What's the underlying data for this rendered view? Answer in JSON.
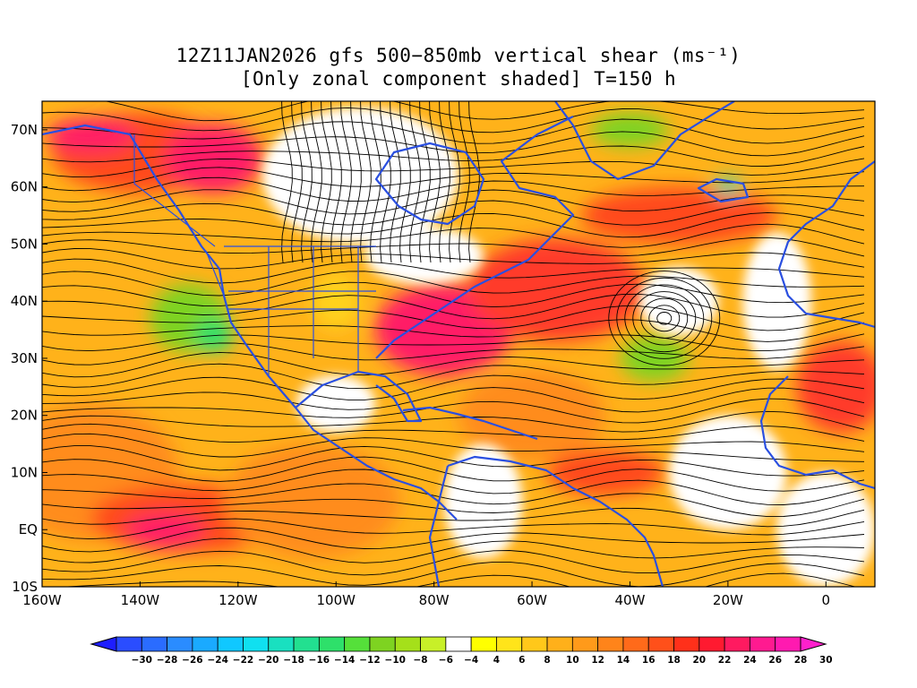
{
  "title": {
    "line1": "12Z11JAN2026 gfs 500−850mb vertical shear (ms⁻¹)",
    "line2": "[Only zonal component shaded] T=150 h"
  },
  "map": {
    "lon_range": [
      -160,
      10
    ],
    "lat_range": [
      -10,
      75
    ],
    "land_outline_color": "#2a4fe0",
    "streamline_color": "#000000",
    "lat_labels": [
      {
        "lat": 70,
        "text": "70N"
      },
      {
        "lat": 60,
        "text": "60N"
      },
      {
        "lat": 50,
        "text": "50N"
      },
      {
        "lat": 40,
        "text": "40N"
      },
      {
        "lat": 30,
        "text": "30N"
      },
      {
        "lat": 20,
        "text": "20N"
      },
      {
        "lat": 10,
        "text": "10N"
      },
      {
        "lat": 0,
        "text": "EQ"
      },
      {
        "lat": -10,
        "text": "10S"
      }
    ],
    "lon_labels": [
      {
        "lon": -160,
        "text": "160W"
      },
      {
        "lon": -140,
        "text": "140W"
      },
      {
        "lon": -120,
        "text": "120W"
      },
      {
        "lon": -100,
        "text": "100W"
      },
      {
        "lon": -80,
        "text": "80W"
      },
      {
        "lon": -60,
        "text": "60W"
      },
      {
        "lon": -40,
        "text": "40W"
      },
      {
        "lon": -20,
        "text": "20W"
      },
      {
        "lon": 0,
        "text": "0"
      }
    ],
    "shading_regions": [
      {
        "color": "#ff8c1a",
        "lon": -150,
        "lat": 10,
        "rx": 18,
        "ry": 12
      },
      {
        "color": "#ff4a1a",
        "lon": -130,
        "lat": 2,
        "rx": 20,
        "ry": 6
      },
      {
        "color": "#ff1a66",
        "lon": -135,
        "lat": 0,
        "rx": 8,
        "ry": 3
      },
      {
        "color": "#ff8c1a",
        "lon": -105,
        "lat": 5,
        "rx": 18,
        "ry": 10
      },
      {
        "color": "#ff4a1a",
        "lon": -140,
        "lat": 66,
        "rx": 18,
        "ry": 7
      },
      {
        "color": "#ff1a66",
        "lon": -125,
        "lat": 65,
        "rx": 10,
        "ry": 6
      },
      {
        "color": "#ff1a66",
        "lon": -150,
        "lat": 69,
        "rx": 9,
        "ry": 3
      },
      {
        "color": "#ff1a66",
        "lon": -78,
        "lat": 35,
        "rx": 14,
        "ry": 8
      },
      {
        "color": "#ff3a2a",
        "lon": -55,
        "lat": 42,
        "rx": 18,
        "ry": 9
      },
      {
        "color": "#ff4a1a",
        "lon": -30,
        "lat": 55,
        "rx": 20,
        "ry": 5
      },
      {
        "color": "#ff3a2a",
        "lon": 3,
        "lat": 25,
        "rx": 9,
        "ry": 8
      },
      {
        "color": "#ff4a1a",
        "lon": -45,
        "lat": 10,
        "rx": 12,
        "ry": 4
      },
      {
        "color": "#ff8c1a",
        "lon": -60,
        "lat": 20,
        "rx": 15,
        "ry": 8
      },
      {
        "color": "#7ed321",
        "lon": -130,
        "lat": 37,
        "rx": 8,
        "ry": 6
      },
      {
        "color": "#2ee06a",
        "lon": -125,
        "lat": 34,
        "rx": 4,
        "ry": 3
      },
      {
        "color": "#7ed321",
        "lon": -35,
        "lat": 30,
        "rx": 7,
        "ry": 4
      },
      {
        "color": "#7ed321",
        "lon": -40,
        "lat": 70,
        "rx": 8,
        "ry": 3
      },
      {
        "color": "#19d9b0",
        "lon": -20,
        "lat": 60,
        "rx": 3,
        "ry": 1.5
      },
      {
        "color": "#ffd21a",
        "lon": -100,
        "lat": 40,
        "rx": 5,
        "ry": 5
      }
    ],
    "blank_regions": [
      {
        "lon": -95,
        "lat": 62,
        "rx": 20,
        "ry": 12
      },
      {
        "lon": -82,
        "lat": 48,
        "rx": 12,
        "ry": 5
      },
      {
        "lon": -30,
        "lat": 40,
        "rx": 8,
        "ry": 6
      },
      {
        "lon": -10,
        "lat": 40,
        "rx": 7,
        "ry": 12
      },
      {
        "lon": -20,
        "lat": 10,
        "rx": 12,
        "ry": 10
      },
      {
        "lon": 0,
        "lat": 0,
        "rx": 10,
        "ry": 10
      },
      {
        "lon": -100,
        "lat": 22,
        "rx": 8,
        "ry": 5
      },
      {
        "lon": -70,
        "lat": 5,
        "rx": 8,
        "ry": 10
      }
    ]
  },
  "colorbar": {
    "labels": [
      "-30",
      "-28",
      "-26",
      "-24",
      "-22",
      "-20",
      "-18",
      "-16",
      "-14",
      "-12",
      "-10",
      "-8",
      "-6",
      "-4",
      "4",
      "6",
      "8",
      "10",
      "12",
      "14",
      "16",
      "18",
      "20",
      "22",
      "24",
      "26",
      "28",
      "30"
    ],
    "colors": [
      "#1e1eff",
      "#2a4dff",
      "#2a6cff",
      "#2a8cff",
      "#1aaaff",
      "#10c8ff",
      "#10e0f0",
      "#19e0c0",
      "#22e090",
      "#2ee06a",
      "#55e03a",
      "#7ed321",
      "#a5e01a",
      "#c8f028",
      "#ffffff",
      "#ffff00",
      "#ffe41a",
      "#ffc81a",
      "#ffb01a",
      "#ff9a1a",
      "#ff841a",
      "#ff6a1a",
      "#ff501a",
      "#ff301a",
      "#ff1a30",
      "#ff1a60",
      "#ff1a90",
      "#ff1ab0",
      "#ff20cc"
    ]
  }
}
